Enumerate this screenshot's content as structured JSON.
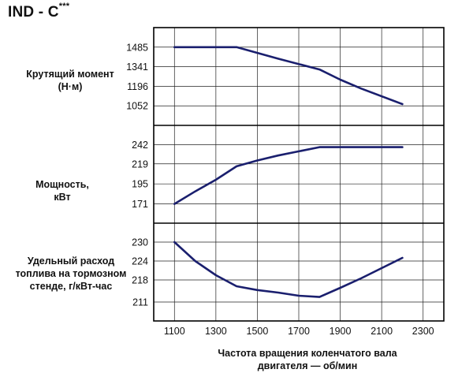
{
  "title": {
    "main": "IND - C",
    "sup": "***"
  },
  "chart_data": {
    "type": "line",
    "x_ticks": [
      1100,
      1300,
      1500,
      1700,
      1900,
      2100,
      2300
    ],
    "xlim": [
      1000,
      2400
    ],
    "xlabel_line1": "Частота вращения коленчатого вала",
    "xlabel_line2": "двигателя — об/мин",
    "line_color": "#1a1f6e",
    "grid": true,
    "panels": [
      {
        "label_line1": "Крутящий момент",
        "label_line2": "(Н·м)",
        "y_ticks": [
          1052,
          1196,
          1341,
          1485
        ],
        "ylim": [
          908,
          1629
        ],
        "x": [
          1100,
          1400,
          1600,
          1800,
          1900,
          2000,
          2200
        ],
        "y": [
          1485,
          1485,
          1400,
          1320,
          1245,
          1180,
          1065
        ]
      },
      {
        "label_line1": "Мощность,",
        "label_line2": "кВт",
        "y_ticks": [
          171,
          195,
          219,
          242
        ],
        "ylim": [
          148,
          265
        ],
        "x": [
          1100,
          1200,
          1300,
          1400,
          1500,
          1600,
          1700,
          1800,
          1900,
          2000,
          2200
        ],
        "y": [
          171,
          186,
          200,
          216,
          223,
          229,
          234,
          239,
          239,
          239,
          239
        ]
      },
      {
        "label_line1": "Удельный расход",
        "label_line2": "топлива на тормозном",
        "label_line3": "стенде, г/кВт-час",
        "y_ticks": [
          211,
          218,
          224,
          230
        ],
        "ylim": [
          205,
          236
        ],
        "x": [
          1100,
          1200,
          1300,
          1400,
          1500,
          1600,
          1700,
          1800,
          1900,
          2000,
          2200
        ],
        "y": [
          230,
          224,
          219.5,
          216,
          214.8,
          214,
          213,
          212.6,
          215.5,
          218.5,
          225
        ]
      }
    ]
  }
}
